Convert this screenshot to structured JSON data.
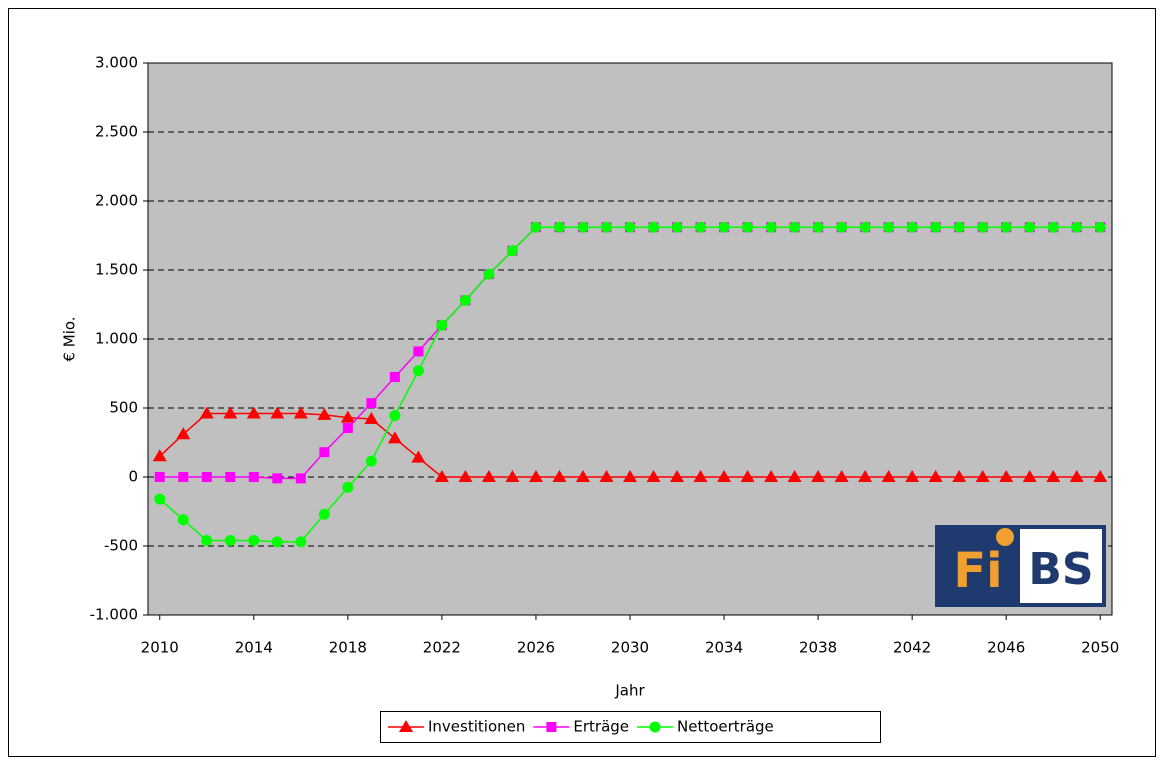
{
  "chart_data": {
    "type": "line",
    "ylabel": "€ Mio.",
    "xlabel": "Jahr",
    "x": [
      2010,
      2011,
      2012,
      2013,
      2014,
      2015,
      2016,
      2017,
      2018,
      2019,
      2020,
      2021,
      2022,
      2023,
      2024,
      2025,
      2026,
      2027,
      2028,
      2029,
      2030,
      2031,
      2032,
      2033,
      2034,
      2035,
      2036,
      2037,
      2038,
      2039,
      2040,
      2041,
      2042,
      2043,
      2044,
      2045,
      2046,
      2047,
      2048,
      2049,
      2050
    ],
    "xlim": [
      2009.5,
      2050.5
    ],
    "xticks": [
      2010,
      2014,
      2018,
      2022,
      2026,
      2030,
      2034,
      2038,
      2042,
      2046,
      2050
    ],
    "ylim": [
      -1000,
      3000
    ],
    "yticks": [
      {
        "value": -1000,
        "label": "-1.000"
      },
      -500,
      0,
      500,
      {
        "value": 1000,
        "label": "1.000"
      },
      {
        "value": 1500,
        "label": "1.500"
      },
      {
        "value": 2000,
        "label": "2.000"
      },
      {
        "value": 2500,
        "label": "2.500"
      },
      {
        "value": 3000,
        "label": "3.000"
      }
    ],
    "grid": true,
    "legend": "bottom",
    "series": [
      {
        "name": "Investitionen",
        "color": "#ff0000",
        "marker": "triangle",
        "values": [
          150,
          310,
          460,
          460,
          460,
          460,
          460,
          450,
          430,
          420,
          280,
          140,
          0,
          0,
          0,
          0,
          0,
          0,
          0,
          0,
          0,
          0,
          0,
          0,
          0,
          0,
          0,
          0,
          0,
          0,
          0,
          0,
          0,
          0,
          0,
          0,
          0,
          0,
          0,
          0,
          0
        ]
      },
      {
        "name": "Erträge",
        "color": "#ff00ff",
        "marker": "square",
        "values": [
          0,
          0,
          0,
          0,
          0,
          -10,
          -10,
          180,
          355,
          535,
          725,
          910,
          1100,
          1280,
          1470,
          1640,
          1810,
          1810,
          1810,
          1810,
          1810,
          1810,
          1810,
          1810,
          1810,
          1810,
          1810,
          1810,
          1810,
          1810,
          1810,
          1810,
          1810,
          1810,
          1810,
          1810,
          1810,
          1810,
          1810,
          1810,
          1810
        ]
      },
      {
        "name": "Nettoerträge",
        "color": "#00ff00",
        "marker": "circle",
        "values": [
          -160,
          -310,
          -460,
          -460,
          -460,
          -470,
          -470,
          -270,
          -75,
          115,
          445,
          770,
          1100,
          1280,
          1470,
          1640,
          1810,
          1810,
          1810,
          1810,
          1810,
          1810,
          1810,
          1810,
          1810,
          1810,
          1810,
          1810,
          1810,
          1810,
          1810,
          1810,
          1810,
          1810,
          1810,
          1810,
          1810,
          1810,
          1810,
          1810,
          1810
        ]
      }
    ]
  },
  "logo": {
    "left": "Fi",
    "right": "BS"
  }
}
